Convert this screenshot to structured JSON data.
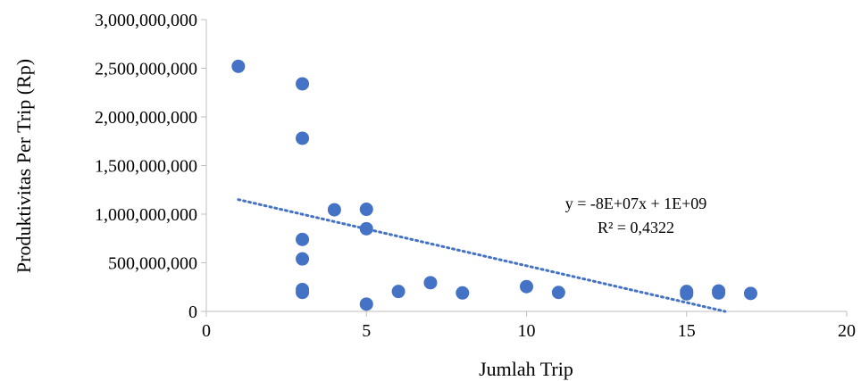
{
  "chart_data": {
    "type": "scatter",
    "xlabel": "Jumlah Trip",
    "ylabel": "Produktivitas Per Trip (Rp)",
    "xlim": [
      0,
      20
    ],
    "ylim": [
      0,
      3000000000
    ],
    "x_ticks": [
      {
        "value": 0,
        "label": "0"
      },
      {
        "value": 5,
        "label": "5"
      },
      {
        "value": 10,
        "label": "10"
      },
      {
        "value": 15,
        "label": "15"
      },
      {
        "value": 20,
        "label": "20"
      }
    ],
    "y_ticks": [
      {
        "value": 0,
        "label": "0"
      },
      {
        "value": 500000000,
        "label": "500,000,000"
      },
      {
        "value": 1000000000,
        "label": "1,000,000,000"
      },
      {
        "value": 1500000000,
        "label": "1,500,000,000"
      },
      {
        "value": 2000000000,
        "label": "2,000,000,000"
      },
      {
        "value": 2500000000,
        "label": "2,500,000,000"
      },
      {
        "value": 3000000000,
        "label": "3,000,000,000"
      }
    ],
    "points": [
      {
        "x": 1,
        "y": 2520000000
      },
      {
        "x": 3,
        "y": 2340000000
      },
      {
        "x": 3,
        "y": 1780000000
      },
      {
        "x": 3,
        "y": 740000000
      },
      {
        "x": 3,
        "y": 540000000
      },
      {
        "x": 3,
        "y": 225000000
      },
      {
        "x": 3,
        "y": 195000000
      },
      {
        "x": 4,
        "y": 1045000000
      },
      {
        "x": 5,
        "y": 1050000000
      },
      {
        "x": 5,
        "y": 850000000
      },
      {
        "x": 5,
        "y": 75000000
      },
      {
        "x": 6,
        "y": 205000000
      },
      {
        "x": 7,
        "y": 295000000
      },
      {
        "x": 8,
        "y": 190000000
      },
      {
        "x": 10,
        "y": 255000000
      },
      {
        "x": 11,
        "y": 195000000
      },
      {
        "x": 15,
        "y": 205000000
      },
      {
        "x": 15,
        "y": 180000000
      },
      {
        "x": 16,
        "y": 210000000
      },
      {
        "x": 16,
        "y": 190000000
      },
      {
        "x": 17,
        "y": 185000000
      }
    ],
    "trendline": {
      "type": "linear",
      "x_start": 1,
      "y_start": 1150000000,
      "x_end": 16.2,
      "y_end": 0,
      "equation": "y = -8E+07x + 1E+09",
      "r_squared": "R² = 0,4322"
    },
    "colors": {
      "marker": "#4472c4",
      "trendline": "#4472c4",
      "axis": "#bfbfbf"
    },
    "grid": false,
    "legend": "none"
  }
}
